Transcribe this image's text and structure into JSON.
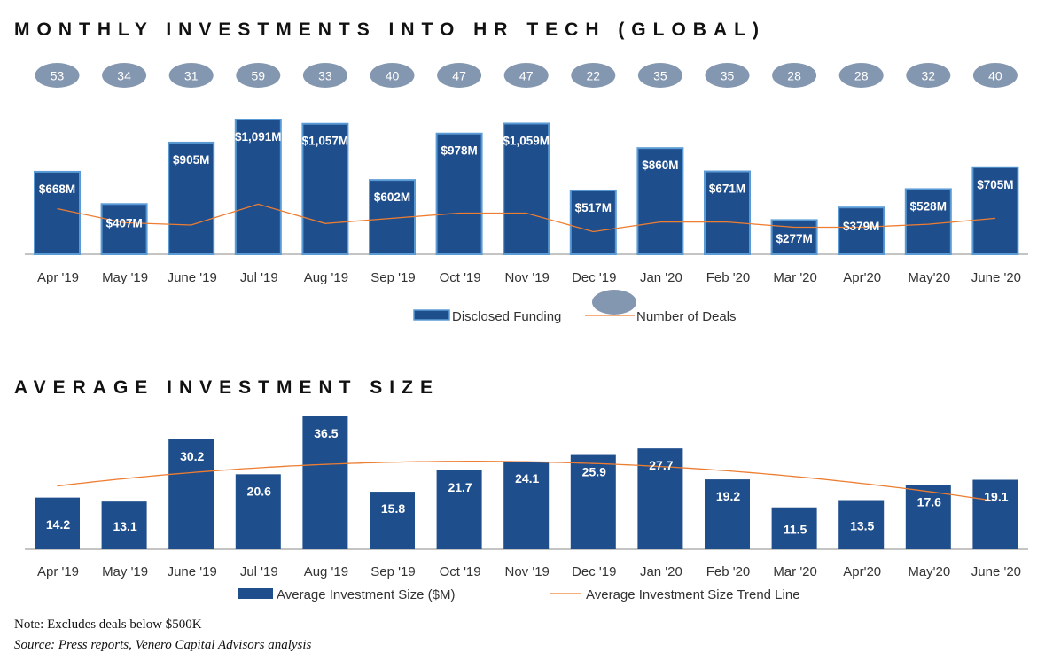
{
  "colors": {
    "bar": "#1F4E8C",
    "bar_edge": "#5B9BD5",
    "line": "#ED7D31",
    "bubble": "#8497B0",
    "axis": "#888888"
  },
  "footnote": {
    "note": "Note: Excludes deals below $500K",
    "source": "Source: Press reports, Venero Capital Advisors analysis"
  },
  "chart_data": [
    {
      "type": "bar",
      "title": "MONTHLY INVESTMENTS INTO HR TECH (GLOBAL)",
      "categories": [
        "Apr '19",
        "May '19",
        "June '19",
        "Jul '19",
        "Aug '19",
        "Sep '19",
        "Oct '19",
        "Nov '19",
        "Dec '19",
        "Jan '20",
        "Feb '20",
        "Mar '20",
        "Apr'20",
        "May'20",
        "June '20"
      ],
      "series": [
        {
          "name": "Disclosed Funding",
          "type": "bar",
          "values": [
            668,
            407,
            905,
            1091,
            1057,
            602,
            978,
            1059,
            517,
            860,
            671,
            277,
            379,
            528,
            705
          ],
          "data_labels": [
            "$668M",
            "$407M",
            "$905M",
            "$1,091M",
            "$1,057M",
            "$602M",
            "$978M",
            "$1,059M",
            "$517M",
            "$860M",
            "$671M",
            "$277M",
            "$379M",
            "$528M",
            "$705M"
          ]
        },
        {
          "name": "Number of Deals",
          "type": "line",
          "values": [
            53,
            34,
            31,
            59,
            33,
            40,
            47,
            47,
            22,
            35,
            35,
            28,
            28,
            32,
            40
          ]
        }
      ],
      "legend": [
        "Disclosed Funding",
        "Number of Deals"
      ],
      "legend_position": "bottom",
      "grid": false
    },
    {
      "type": "bar",
      "title": "AVERAGE INVESTMENT SIZE",
      "categories": [
        "Apr '19",
        "May '19",
        "June '19",
        "Jul '19",
        "Aug '19",
        "Sep '19",
        "Oct '19",
        "Nov '19",
        "Dec '19",
        "Jan '20",
        "Feb '20",
        "Mar '20",
        "Apr'20",
        "May'20",
        "June '20"
      ],
      "series": [
        {
          "name": "Average Investment Size ($M)",
          "type": "bar",
          "values": [
            14.2,
            13.1,
            30.2,
            20.6,
            36.5,
            15.8,
            21.7,
            24.1,
            25.9,
            27.7,
            19.2,
            11.5,
            13.5,
            17.6,
            19.1
          ]
        },
        {
          "name": "Average Investment Size Trend Line",
          "type": "line",
          "trend": "polynomial"
        }
      ],
      "legend": [
        "Average Investment Size ($M)",
        "Average Investment Size Trend Line"
      ],
      "legend_position": "bottom",
      "grid": false
    }
  ]
}
